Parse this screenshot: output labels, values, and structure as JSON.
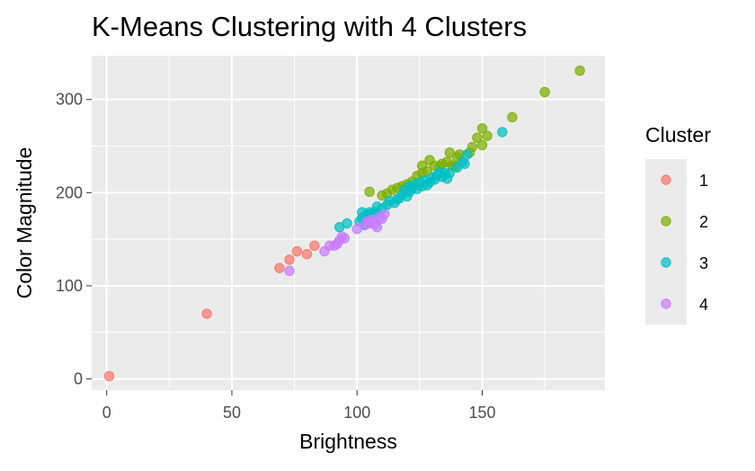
{
  "chart_data": {
    "type": "scatter",
    "title": "K-Means Clustering with 4 Clusters",
    "xlabel": "Brightness",
    "ylabel": "Color Magnitude",
    "xlim": [
      -6,
      199
    ],
    "ylim": [
      -12,
      347
    ],
    "x_ticks": [
      0,
      50,
      100,
      150
    ],
    "y_ticks": [
      0,
      100,
      200,
      300
    ],
    "grid": true,
    "legend": {
      "title": "Cluster",
      "position": "right"
    },
    "series": [
      {
        "name": "1",
        "color": "#F8766D",
        "points": [
          [
            1,
            3
          ],
          [
            40,
            70
          ],
          [
            69,
            119
          ],
          [
            73,
            128
          ],
          [
            76,
            137
          ],
          [
            80,
            134
          ],
          [
            83,
            143
          ]
        ]
      },
      {
        "name": "2",
        "color": "#7CAE00",
        "points": [
          [
            105,
            201
          ],
          [
            110,
            197
          ],
          [
            112,
            199
          ],
          [
            114,
            203
          ],
          [
            116,
            205
          ],
          [
            118,
            207
          ],
          [
            120,
            209
          ],
          [
            122,
            212
          ],
          [
            124,
            218
          ],
          [
            126,
            221
          ],
          [
            126,
            229
          ],
          [
            128,
            223
          ],
          [
            129,
            235
          ],
          [
            131,
            229
          ],
          [
            133,
            228
          ],
          [
            134,
            231
          ],
          [
            136,
            233
          ],
          [
            137,
            243
          ],
          [
            138,
            229
          ],
          [
            139,
            228
          ],
          [
            140,
            238
          ],
          [
            141,
            241
          ],
          [
            145,
            243
          ],
          [
            146,
            249
          ],
          [
            148,
            259
          ],
          [
            150,
            251
          ],
          [
            150,
            269
          ],
          [
            152,
            261
          ],
          [
            162,
            281
          ],
          [
            175,
            308
          ],
          [
            189,
            331
          ]
        ]
      },
      {
        "name": "3",
        "color": "#00BFC4",
        "points": [
          [
            93,
            163
          ],
          [
            96,
            167
          ],
          [
            101,
            169
          ],
          [
            102,
            173
          ],
          [
            102,
            179
          ],
          [
            103,
            166
          ],
          [
            104,
            177
          ],
          [
            105,
            179
          ],
          [
            106,
            177
          ],
          [
            107,
            179
          ],
          [
            108,
            185
          ],
          [
            110,
            183
          ],
          [
            112,
            187
          ],
          [
            113,
            191
          ],
          [
            115,
            189
          ],
          [
            116,
            193
          ],
          [
            117,
            194
          ],
          [
            118,
            198
          ],
          [
            119,
            203
          ],
          [
            120,
            196
          ],
          [
            121,
            201
          ],
          [
            121,
            207
          ],
          [
            122,
            205
          ],
          [
            123,
            209
          ],
          [
            124,
            204
          ],
          [
            125,
            211
          ],
          [
            126,
            207
          ],
          [
            127,
            213
          ],
          [
            128,
            208
          ],
          [
            129,
            211
          ],
          [
            130,
            216
          ],
          [
            131,
            214
          ],
          [
            132,
            219
          ],
          [
            133,
            222
          ],
          [
            134,
            217
          ],
          [
            135,
            221
          ],
          [
            136,
            215
          ],
          [
            137,
            221
          ],
          [
            140,
            227
          ],
          [
            142,
            233
          ],
          [
            143,
            231
          ],
          [
            144,
            241
          ],
          [
            158,
            265
          ]
        ]
      },
      {
        "name": "4",
        "color": "#C77CFF",
        "points": [
          [
            73,
            116
          ],
          [
            87,
            137
          ],
          [
            89,
            143
          ],
          [
            91,
            143
          ],
          [
            92,
            145
          ],
          [
            93,
            149
          ],
          [
            94,
            153
          ],
          [
            95,
            151
          ],
          [
            100,
            161
          ],
          [
            103,
            165
          ],
          [
            104,
            169
          ],
          [
            105,
            167
          ],
          [
            106,
            171
          ],
          [
            107,
            166
          ],
          [
            108,
            163
          ],
          [
            109,
            173
          ],
          [
            110,
            172
          ],
          [
            111,
            177
          ]
        ]
      }
    ]
  }
}
